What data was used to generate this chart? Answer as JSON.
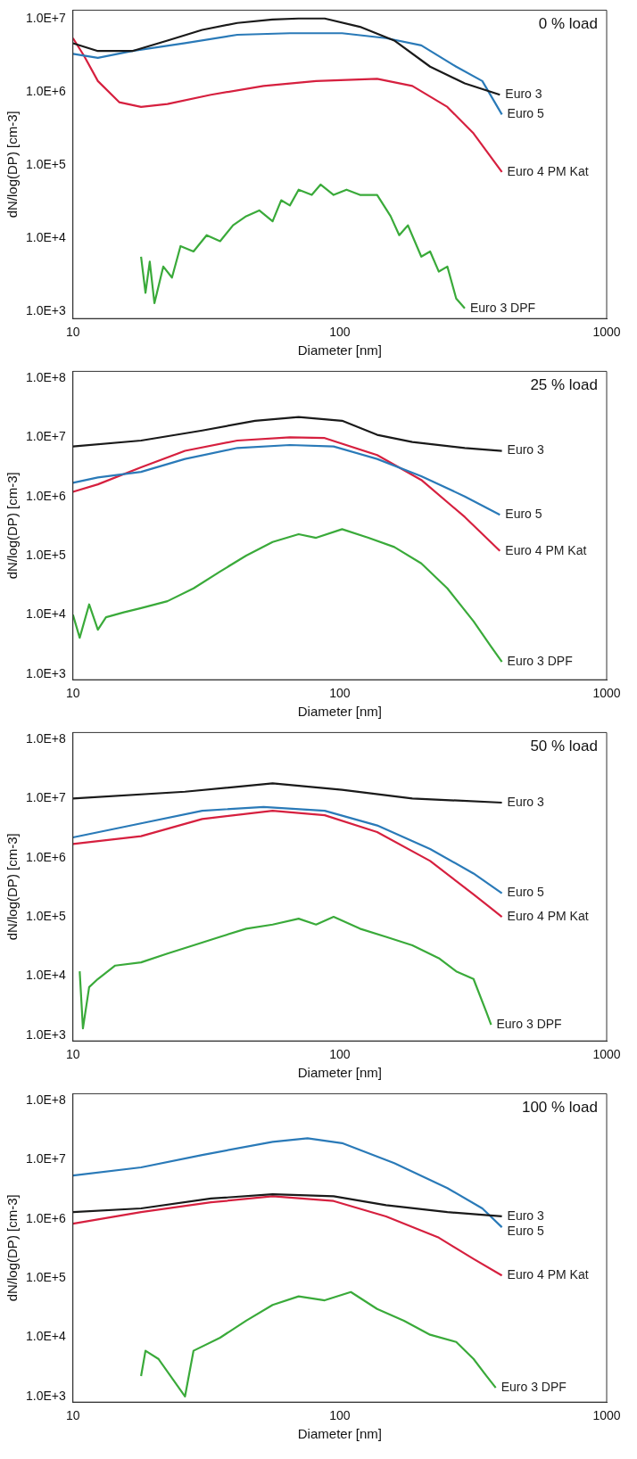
{
  "chart_data": [
    {
      "type": "line",
      "annotations": [
        "0 % load"
      ],
      "xlabel": "Diameter [nm]",
      "ylabel": "dN/log(DP) [cm-3]",
      "log": "xy",
      "grid": false,
      "legend": false,
      "marker": "none",
      "xlim": [
        10,
        1000
      ],
      "xticks": [
        10,
        100,
        1000
      ],
      "ylim": [
        800,
        13000000
      ],
      "yticks": [
        {
          "value": 1000,
          "label": "1.0E+3"
        },
        {
          "value": 10000,
          "label": "1.0E+4"
        },
        {
          "value": 100000,
          "label": "1.0E+5"
        },
        {
          "value": 1000000,
          "label": "1.0E+6"
        },
        {
          "value": 10000000,
          "label": "1.0E+7"
        }
      ],
      "series": [
        {
          "name": "Euro 3",
          "color": "#1a1a1a",
          "x": [
            10,
            12.4,
            16.7,
            22.6,
            30.5,
            41.3,
            55.9,
            70,
            87.8,
            119,
            160,
            218,
            294,
            398
          ],
          "values": [
            4600000,
            3600000,
            3600000,
            5000000,
            7000000,
            8700000,
            9700000,
            10000000,
            10000000,
            7700000,
            5000000,
            2200000,
            1300000,
            910000
          ]
        },
        {
          "name": "Euro 5",
          "color": "#2a7ab8",
          "x": [
            10,
            12.4,
            16.7,
            26.3,
            41.3,
            65,
            102,
            149,
            202,
            273,
            342,
            405
          ],
          "values": [
            3300000,
            2900000,
            3600000,
            4600000,
            6000000,
            6300000,
            6300000,
            5400000,
            4300000,
            2200000,
            1400000,
            490000
          ]
        },
        {
          "name": "Euro 4 PM Kat",
          "color": "#d6203f",
          "x": [
            10,
            11,
            12.4,
            14.9,
            18,
            22.6,
            32.9,
            51.8,
            81.5,
            138,
            187,
            253,
            317,
            405
          ],
          "values": [
            5400000,
            3100000,
            1400000,
            720000,
            620000,
            680000,
            910000,
            1200000,
            1400000,
            1500000,
            1200000,
            620000,
            270000,
            80000
          ]
        },
        {
          "name": "Euro 3 DPF",
          "color": "#3aaa3a",
          "x": [
            18,
            18.7,
            19.4,
            20.2,
            21.8,
            23.5,
            25.3,
            28.3,
            31.7,
            35.6,
            39.8,
            44.6,
            49.9,
            56,
            60.3,
            65,
            70.1,
            78.5,
            84.7,
            94.8,
            106,
            119,
            138,
            155,
            167,
            180,
            202,
            218,
            235,
            253,
            273,
            294
          ],
          "values": [
            5600,
            1800,
            4800,
            1300,
            4100,
            2900,
            7800,
            6600,
            11000,
            9100,
            15000,
            20000,
            24000,
            17000,
            33000,
            28000,
            46000,
            39000,
            54000,
            39000,
            46000,
            39000,
            39000,
            20000,
            11000,
            15000,
            5600,
            6600,
            3500,
            4100,
            1500,
            1100
          ]
        }
      ]
    },
    {
      "type": "line",
      "annotations": [
        "25 % load"
      ],
      "xlabel": "Diameter [nm]",
      "ylabel": "dN/log(DP) [cm-3]",
      "log": "xy",
      "grid": false,
      "legend": false,
      "marker": "none",
      "xlim": [
        10,
        1000
      ],
      "xticks": [
        10,
        100,
        1000
      ],
      "ylim": [
        800,
        130000000
      ],
      "yticks": [
        {
          "value": 1000,
          "label": "1.0E+3"
        },
        {
          "value": 10000,
          "label": "1.0E+4"
        },
        {
          "value": 100000,
          "label": "1.0E+5"
        },
        {
          "value": 1000000,
          "label": "1.0E+6"
        },
        {
          "value": 10000000,
          "label": "1.0E+7"
        },
        {
          "value": 100000000,
          "label": "1.0E+8"
        }
      ],
      "series": [
        {
          "name": "Euro 3",
          "color": "#1a1a1a",
          "x": [
            10,
            18,
            30.5,
            48.1,
            70.1,
            102,
            138,
            187,
            294,
            405
          ],
          "values": [
            7000000,
            8800000,
            13000000,
            19000000,
            22000000,
            19000000,
            11000000,
            8300000,
            6600000,
            5900000
          ]
        },
        {
          "name": "Euro 5",
          "color": "#2a7ab8",
          "x": [
            10,
            12.4,
            18,
            26.3,
            41.3,
            65,
            94.8,
            138,
            202,
            294,
            398
          ],
          "values": [
            1700000,
            2100000,
            2600000,
            4300000,
            6600000,
            7400000,
            7000000,
            4300000,
            2200000,
            1000000,
            490000
          ]
        },
        {
          "name": "Euro 4 PM Kat",
          "color": "#d6203f",
          "x": [
            10,
            12.4,
            18,
            26.3,
            41.3,
            65,
            87.8,
            138,
            202,
            294,
            398
          ],
          "values": [
            1200000,
            1600000,
            3100000,
            5900000,
            8800000,
            10000000,
            9700000,
            5000000,
            1900000,
            450000,
            120000
          ]
        },
        {
          "name": "Euro 3 DPF",
          "color": "#3aaa3a",
          "x": [
            10,
            10.6,
            11.5,
            12.4,
            13.3,
            15.5,
            18,
            22.6,
            28.3,
            35.6,
            44.6,
            56,
            70.1,
            81.5,
            102,
            128,
            160,
            202,
            253,
            317,
            369,
            405
          ],
          "values": [
            10000,
            4100,
            15000,
            5600,
            9100,
            11000,
            13000,
            17000,
            28000,
            54000,
            100000,
            170000,
            230000,
            200000,
            280000,
            200000,
            140000,
            74000,
            28000,
            7800,
            2900,
            1600
          ]
        }
      ]
    },
    {
      "type": "line",
      "annotations": [
        "50 % load"
      ],
      "xlabel": "Diameter [nm]",
      "ylabel": "dN/log(DP) [cm-3]",
      "log": "xy",
      "grid": false,
      "legend": false,
      "marker": "none",
      "xlim": [
        10,
        1000
      ],
      "xticks": [
        10,
        100,
        1000
      ],
      "ylim": [
        800,
        130000000
      ],
      "yticks": [
        {
          "value": 1000,
          "label": "1.0E+3"
        },
        {
          "value": 10000,
          "label": "1.0E+4"
        },
        {
          "value": 100000,
          "label": "1.0E+5"
        },
        {
          "value": 1000000,
          "label": "1.0E+6"
        },
        {
          "value": 10000000,
          "label": "1.0E+7"
        },
        {
          "value": 100000000,
          "label": "1.0E+8"
        }
      ],
      "series": [
        {
          "name": "Euro 3",
          "color": "#1a1a1a",
          "x": [
            10,
            26.3,
            56,
            102,
            187,
            405
          ],
          "values": [
            10000000,
            13000000,
            18000000,
            14000000,
            10000000,
            8500000
          ]
        },
        {
          "name": "Euro 5",
          "color": "#2a7ab8",
          "x": [
            10,
            18,
            30.5,
            51.8,
            87.8,
            138,
            218,
            317,
            405
          ],
          "values": [
            2200000,
            3800000,
            6200000,
            7200000,
            6200000,
            3500000,
            1400000,
            540000,
            250000
          ]
        },
        {
          "name": "Euro 4 PM Kat",
          "color": "#d6203f",
          "x": [
            10,
            18,
            30.5,
            56,
            87.8,
            138,
            218,
            317,
            405
          ],
          "values": [
            1700000,
            2300000,
            4500000,
            6200000,
            5200000,
            2700000,
            880000,
            240000,
            100000
          ]
        },
        {
          "name": "Euro 3 DPF",
          "color": "#3aaa3a",
          "x": [
            10.6,
            10.9,
            11.5,
            12.4,
            14.4,
            18,
            22.6,
            28.3,
            35.6,
            44.6,
            56,
            70.1,
            81.5,
            94.8,
            119,
            149,
            187,
            235,
            273,
            317,
            355,
            369
          ],
          "values": [
            12000,
            1300,
            6500,
            8900,
            15000,
            17000,
            24000,
            33000,
            46000,
            63000,
            74000,
            93000,
            74000,
            100000,
            63000,
            46000,
            33000,
            20000,
            12000,
            8900,
            2400,
            1500
          ]
        }
      ]
    },
    {
      "type": "line",
      "annotations": [
        "100 % load"
      ],
      "xlabel": "Diameter [nm]",
      "ylabel": "dN/log(DP) [cm-3]",
      "log": "xy",
      "grid": false,
      "legend": false,
      "marker": "none",
      "xlim": [
        10,
        1000
      ],
      "xticks": [
        10,
        100,
        1000
      ],
      "ylim": [
        800,
        130000000
      ],
      "yticks": [
        {
          "value": 1000,
          "label": "1.0E+3"
        },
        {
          "value": 10000,
          "label": "1.0E+4"
        },
        {
          "value": 100000,
          "label": "1.0E+5"
        },
        {
          "value": 1000000,
          "label": "1.0E+6"
        },
        {
          "value": 10000000,
          "label": "1.0E+7"
        },
        {
          "value": 100000000,
          "label": "1.0E+8"
        }
      ],
      "series": [
        {
          "name": "Euro 3",
          "color": "#1a1a1a",
          "x": [
            10,
            18,
            32.9,
            56,
            94.8,
            149,
            253,
            405
          ],
          "values": [
            1300000,
            1500000,
            2200000,
            2600000,
            2400000,
            1700000,
            1300000,
            1100000
          ]
        },
        {
          "name": "Euro 5",
          "color": "#2a7ab8",
          "x": [
            10,
            18,
            30.5,
            56,
            75.7,
            102,
            160,
            253,
            342,
            405
          ],
          "values": [
            5400000,
            7400000,
            12000000,
            20000000,
            23000000,
            19000000,
            8700000,
            3300000,
            1500000,
            720000
          ]
        },
        {
          "name": "Euro 4 PM Kat",
          "color": "#d6203f",
          "x": [
            10,
            18,
            32.9,
            56,
            94.8,
            149,
            235,
            317,
            405
          ],
          "values": [
            830000,
            1300000,
            1900000,
            2400000,
            2000000,
            1100000,
            480000,
            210000,
            110000
          ]
        },
        {
          "name": "Euro 3 DPF",
          "color": "#3aaa3a",
          "x": [
            18,
            18.7,
            20.9,
            26.3,
            28.3,
            35.6,
            44.6,
            56,
            70.1,
            87.8,
            110,
            138,
            174,
            218,
            273,
            317,
            355,
            384
          ],
          "values": [
            2200,
            5900,
            4300,
            1000,
            5900,
            9800,
            19000,
            35000,
            49000,
            42000,
            58000,
            30000,
            19000,
            11000,
            8300,
            4300,
            2200,
            1400
          ]
        }
      ]
    }
  ]
}
